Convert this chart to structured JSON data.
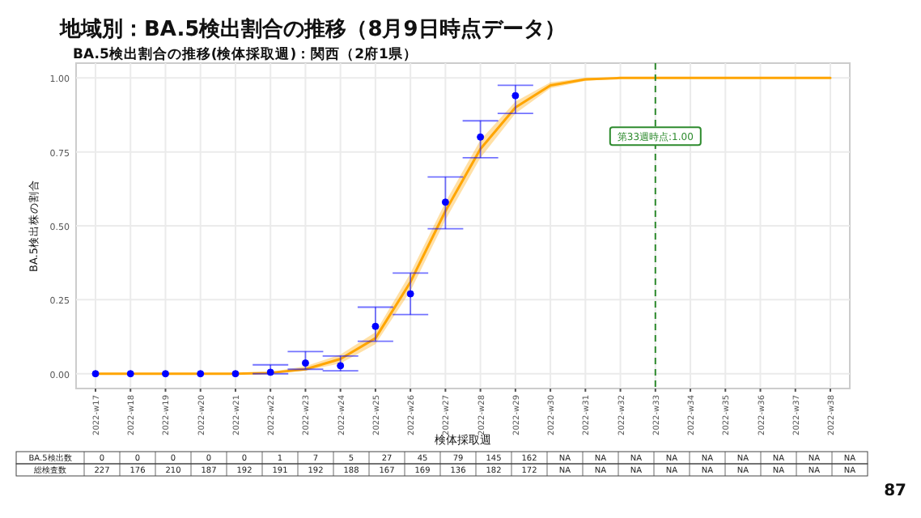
{
  "chart_data": {
    "type": "line",
    "title": "地域別：BA.5検出割合の推移（8月9日時点データ）",
    "subtitle": "BA.5検出割合の推移(検体採取週)：関西（2府1県）",
    "xlabel": "検体採取週",
    "ylabel": "BA.5検出株の割合",
    "categories": [
      "2022-w17",
      "2022-w18",
      "2022-w19",
      "2022-w20",
      "2022-w21",
      "2022-w22",
      "2022-w23",
      "2022-w24",
      "2022-w25",
      "2022-w26",
      "2022-w27",
      "2022-w28",
      "2022-w29",
      "2022-w30",
      "2022-w31",
      "2022-w32",
      "2022-w33",
      "2022-w34",
      "2022-w35",
      "2022-w36",
      "2022-w37",
      "2022-w38"
    ],
    "series": [
      {
        "type": "line",
        "color": "#ffa500",
        "values": [
          0,
          0,
          0,
          0,
          0,
          0.003,
          0.015,
          0.05,
          0.12,
          0.31,
          0.55,
          0.76,
          0.9,
          0.975,
          0.995,
          1.0,
          1.0,
          1.0,
          1.0,
          1.0,
          1.0,
          1.0
        ],
        "lower": [
          0,
          0,
          0,
          0,
          0,
          0.001,
          0.01,
          0.035,
          0.1,
          0.28,
          0.52,
          0.73,
          0.88,
          0.965,
          0.99,
          0.998,
          1.0,
          1.0,
          1.0,
          1.0,
          1.0,
          1.0
        ],
        "upper": [
          0,
          0,
          0,
          0,
          0,
          0.006,
          0.025,
          0.065,
          0.14,
          0.34,
          0.58,
          0.79,
          0.92,
          0.985,
          1.0,
          1.0,
          1.0,
          1.0,
          1.0,
          1.0,
          1.0,
          1.0
        ]
      },
      {
        "type": "scatter",
        "color": "#0000ff",
        "values": [
          0,
          0,
          0,
          0,
          0,
          0.005,
          0.036,
          0.027,
          0.16,
          0.27,
          0.58,
          0.8,
          0.94,
          null,
          null,
          null,
          null,
          null,
          null,
          null,
          null,
          null
        ],
        "errors": [
          null,
          null,
          null,
          null,
          null,
          [
            0,
            0.03
          ],
          [
            0.015,
            0.075
          ],
          [
            0.01,
            0.06
          ],
          [
            0.11,
            0.225
          ],
          [
            0.2,
            0.34
          ],
          [
            0.49,
            0.665
          ],
          [
            0.73,
            0.855
          ],
          [
            0.88,
            0.975
          ],
          null,
          null,
          null,
          null,
          null,
          null,
          null,
          null,
          null
        ]
      }
    ],
    "ylim": [
      -0.05,
      1.05
    ],
    "yticks": [
      {
        "value": 0,
        "label": "0.00"
      },
      {
        "value": 0.25,
        "label": "0.25"
      },
      {
        "value": 0.5,
        "label": "0.50"
      },
      {
        "value": 0.75,
        "label": "0.75"
      },
      {
        "value": 1,
        "label": "1.00"
      }
    ],
    "grid": true,
    "ref_lines": [
      {
        "axis": "x",
        "value": "2022-w33",
        "label": "第33週時点:1.00",
        "color": "#2e8b2e",
        "line_style": "dashed"
      }
    ],
    "annotations": [
      "BA.5検出数",
      "0",
      "0",
      "0",
      "0",
      "0",
      "1",
      "7",
      "5",
      "27",
      "45",
      "79",
      "145",
      "162",
      "NA",
      "NA",
      "NA",
      "NA",
      "NA",
      "NA",
      "NA",
      "NA",
      "NA",
      "総検査数",
      "227",
      "176",
      "210",
      "187",
      "192",
      "191",
      "192",
      "188",
      "167",
      "169",
      "136",
      "182",
      "172",
      "NA",
      "NA",
      "NA",
      "NA",
      "NA",
      "NA",
      "NA",
      "NA",
      "NA",
      "87"
    ]
  }
}
